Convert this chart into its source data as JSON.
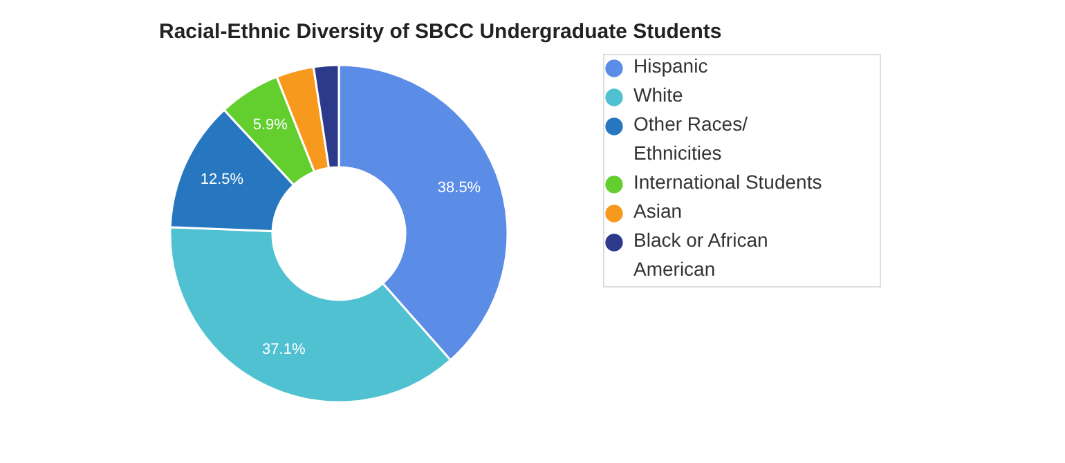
{
  "chart_data": {
    "type": "donut",
    "title": "Racial-Ethnic Diversity of SBCC Undergraduate Students",
    "categories": [
      "Hispanic",
      "White",
      "Other Races/\nEthnicities",
      "International Students",
      "Asian",
      "Black or African\nAmerican"
    ],
    "values": [
      38.5,
      37.1,
      12.5,
      5.9,
      3.6,
      2.4
    ],
    "colors": [
      "#5b8de6",
      "#4fc1d1",
      "#2677bf",
      "#62cf2f",
      "#f7991d",
      "#2d3a8c"
    ],
    "value_labels": [
      "38.5%",
      "37.1%",
      "12.5%",
      "5.9%",
      null,
      null
    ],
    "legend": "right"
  }
}
